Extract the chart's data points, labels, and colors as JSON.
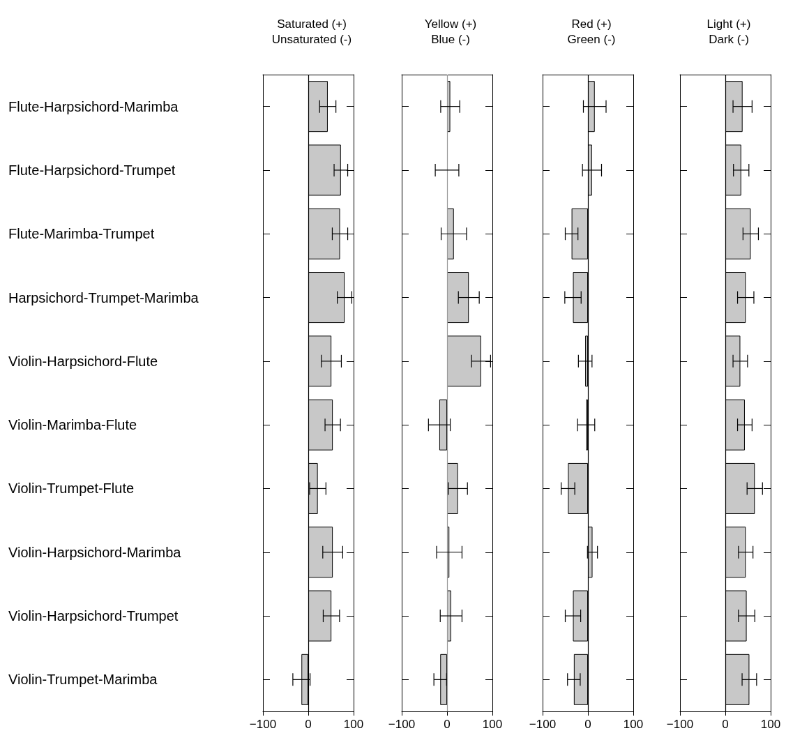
{
  "chart_data": [
    {
      "type": "bar",
      "orientation": "horizontal",
      "title": "Saturated (+)\nUnsaturated (-)",
      "categories": [
        "Flute-Harpsichord-Marimba",
        "Flute-Harpsichord-Trumpet",
        "Flute-Marimba-Trumpet",
        "Harpsichord-Trumpet-Marimba",
        "Violin-Harpsichord-Flute",
        "Violin-Marimba-Flute",
        "Violin-Trumpet-Flute",
        "Violin-Harpsichord-Marimba",
        "Violin-Harpsichord-Trumpet",
        "Violin-Trumpet-Marimba"
      ],
      "values": [
        43,
        72,
        70,
        80,
        51,
        54,
        21,
        54,
        51,
        -15
      ],
      "errors": [
        18,
        15,
        17,
        16,
        22,
        17,
        18,
        22,
        18,
        19
      ],
      "color": "#c8c8c8",
      "xlim": [
        -100,
        100
      ],
      "xticks": [
        -100,
        0,
        100
      ],
      "ref_lines": [
        {
          "axis": "x",
          "value": 0,
          "color": "#000000"
        }
      ]
    },
    {
      "type": "bar",
      "orientation": "horizontal",
      "title": "Yellow (+)\nBlue (-)",
      "categories": [
        null,
        null,
        null,
        null,
        null,
        null,
        null,
        null,
        null,
        null
      ],
      "values": [
        7,
        0,
        15,
        48,
        75,
        -17,
        24,
        5,
        9,
        -15
      ],
      "errors": [
        21,
        26,
        28,
        23,
        21,
        24,
        21,
        28,
        24,
        14
      ],
      "color": "#c8c8c8",
      "xlim": [
        -100,
        100
      ],
      "xticks": [
        -100,
        0,
        100
      ],
      "ref_lines": [
        {
          "axis": "x",
          "value": 0,
          "color": "#999999"
        }
      ],
      "tick_labels": "x"
    },
    {
      "type": "bar",
      "orientation": "horizontal",
      "title": "Red (+)\nGreen (-)",
      "categories": [
        null,
        null,
        null,
        null,
        null,
        null,
        null,
        null,
        null,
        null
      ],
      "values": [
        15,
        9,
        -36,
        -33,
        -6,
        -4,
        -44,
        10,
        -33,
        -31
      ],
      "errors": [
        25,
        21,
        14,
        18,
        15,
        19,
        15,
        11,
        17,
        14
      ],
      "color": "#c8c8c8",
      "xlim": [
        -100,
        100
      ],
      "xticks": [
        -100,
        0,
        100
      ],
      "ref_lines": [
        {
          "axis": "x",
          "value": 0,
          "color": "#000000"
        }
      ],
      "tick_labels": "x"
    },
    {
      "type": "bar",
      "orientation": "horizontal",
      "title": "Light (+)\nDark (-)",
      "categories": [
        null,
        null,
        null,
        null,
        null,
        null,
        null,
        null,
        null,
        null
      ],
      "values": [
        38,
        35,
        56,
        45,
        33,
        43,
        65,
        45,
        47,
        53
      ],
      "errors": [
        21,
        17,
        17,
        18,
        16,
        16,
        17,
        16,
        18,
        16
      ],
      "color": "#c8c8c8",
      "xlim": [
        -100,
        100
      ],
      "xticks": [
        -100,
        0,
        100
      ],
      "ref_lines": [
        {
          "axis": "x",
          "value": 0,
          "color": "#000000"
        }
      ],
      "tick_labels": "x"
    }
  ]
}
